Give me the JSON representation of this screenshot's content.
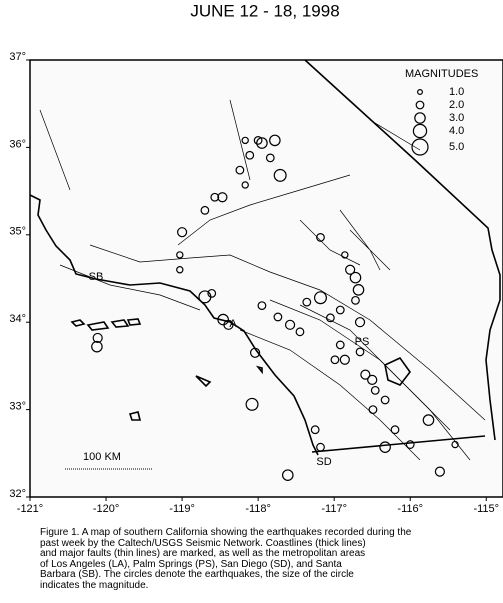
{
  "chart_data": {
    "type": "scatter",
    "title": "JUNE 12 - 18, 1998",
    "xlim": [
      -121,
      -114.78
    ],
    "ylim": [
      32,
      37
    ],
    "xticks": [
      {
        "value": -121,
        "label": "-121°"
      },
      {
        "value": -120,
        "label": "-120°"
      },
      {
        "value": -119,
        "label": "-119°"
      },
      {
        "value": -118,
        "label": "-118°"
      },
      {
        "value": -117,
        "label": "-117°"
      },
      {
        "value": -116,
        "label": "-116°"
      },
      {
        "value": -115,
        "label": "-115°"
      }
    ],
    "yticks": [
      {
        "value": 32,
        "label": "32°"
      },
      {
        "value": 33,
        "label": "33°"
      },
      {
        "value": 34,
        "label": "34°"
      },
      {
        "value": 35,
        "label": "35°"
      },
      {
        "value": 36,
        "label": "36°"
      },
      {
        "value": 37,
        "label": "37°"
      }
    ],
    "legend_title": "MAGNITUDES",
    "legend_sizes": [
      {
        "value": 1,
        "label": "1.0"
      },
      {
        "value": 2,
        "label": "2.0"
      },
      {
        "value": 3,
        "label": "3.0"
      },
      {
        "value": 4,
        "label": "4.0"
      },
      {
        "value": 5,
        "label": "5.0"
      }
    ],
    "places": [
      "SB",
      "A",
      "PS",
      "SD"
    ],
    "scale_label": "100 KM",
    "lon": [
      -118.17,
      -118.11,
      -118.0,
      -117.95,
      -117.78,
      -117.84,
      -117.71,
      -118.24,
      -118.17,
      -118.57,
      -118.47,
      -118.7,
      -119.0,
      -119.03,
      -119.03,
      -118.7,
      -118.61,
      -118.46,
      -118.39,
      -118.04,
      -118.08,
      -117.95,
      -117.74,
      -117.58,
      -117.45,
      -117.36,
      -117.18,
      -117.05,
      -116.92,
      -116.72,
      -116.66,
      -117.18,
      -116.86,
      -116.79,
      -116.72,
      -116.68,
      -116.92,
      -116.99,
      -116.86,
      -116.66,
      -116.59,
      -116.5,
      -116.46,
      -116.49,
      -116.33,
      -116.0,
      -115.76,
      -116.33,
      -115.61,
      -115.41,
      -116.2,
      -117.25,
      -117.18,
      -117.61,
      -120.11,
      -120.12
    ],
    "lat": [
      36.08,
      35.91,
      36.08,
      36.05,
      36.08,
      35.88,
      35.68,
      35.74,
      35.57,
      35.43,
      35.43,
      35.28,
      35.03,
      34.77,
      34.6,
      34.29,
      34.33,
      34.03,
      33.97,
      33.65,
      33.06,
      34.19,
      34.06,
      33.97,
      33.89,
      34.23,
      34.28,
      34.05,
      34.14,
      34.25,
      34.0,
      34.97,
      34.77,
      34.6,
      34.51,
      34.37,
      33.74,
      33.57,
      33.57,
      33.66,
      33.4,
      33.34,
      33.22,
      33.0,
      33.11,
      32.6,
      32.88,
      32.57,
      32.29,
      32.6,
      32.77,
      32.77,
      32.57,
      32.25,
      33.82,
      33.72
    ],
    "magnitude": [
      1.5,
      2,
      2,
      3,
      3,
      2,
      3.5,
      2,
      1.5,
      2,
      2.5,
      2,
      2.5,
      1.5,
      1.5,
      3.5,
      2,
      3,
      2.5,
      2.5,
      3.5,
      2,
      2,
      2.5,
      2,
      2,
      3.5,
      2,
      2,
      2,
      2.5,
      2,
      1.5,
      2.5,
      3,
      3,
      2,
      2,
      2.5,
      2,
      2.5,
      2.5,
      2,
      2,
      2,
      2,
      3,
      3,
      2.5,
      1.5,
      2,
      2,
      2,
      3,
      2.5,
      3
    ],
    "caption": [
      "Figure 1. A map of southern California showing the earthquakes recorded during the",
      "past week by the Caltech/USGS Seismic Network.  Coastlines (thick lines)",
      "and major faults (thin lines) are marked, as well as the metropolitan areas",
      "of Los Angeles (LA), Palm Springs (PS), San Diego (SD), and Santa",
      "Barbara (SB).  The circles denote the earthquakes, the size of the circle",
      "indicates the magnitude."
    ]
  }
}
